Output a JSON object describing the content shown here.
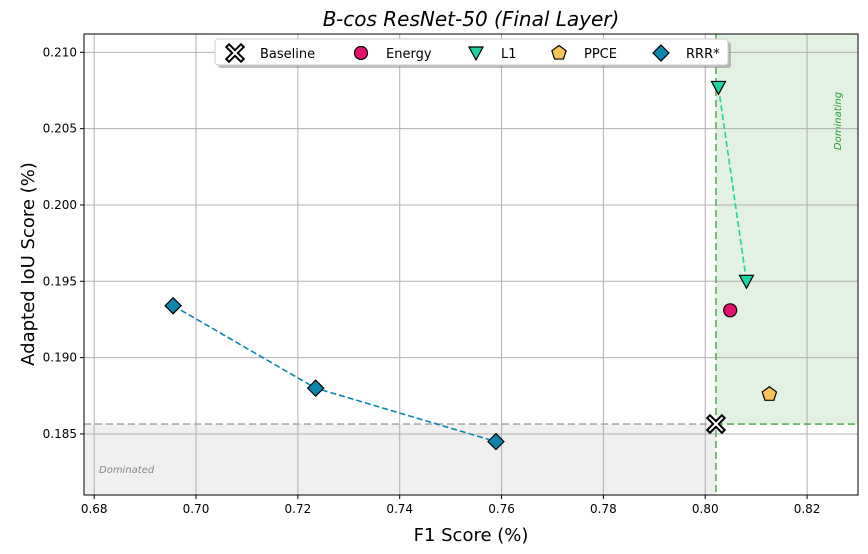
{
  "chart_data": {
    "type": "scatter",
    "title": "B-cos ResNet-50 (Final Layer)",
    "xlabel": "F1 Score (%)",
    "ylabel": "Adapted IoU Score (%)",
    "xlim": [
      0.678,
      0.83
    ],
    "ylim": [
      0.181,
      0.2112
    ],
    "xticks": [
      "0.68",
      "0.70",
      "0.72",
      "0.74",
      "0.76",
      "0.78",
      "0.80",
      "0.82"
    ],
    "yticks": [
      "0.185",
      "0.190",
      "0.195",
      "0.200",
      "0.205",
      "0.210"
    ],
    "grid": true,
    "legend_position": "top-center",
    "baseline": {
      "x": 0.8021,
      "y": 0.18565
    },
    "regions": {
      "dominating_label": "Dominating",
      "dominating_color": "#2e9e3a",
      "dominated_label": "Dominated",
      "dominated_color": "#888888"
    },
    "series": [
      {
        "name": "Baseline",
        "marker": "x-cross",
        "color": "#000000",
        "edge": "#000000",
        "connected": false,
        "points": [
          {
            "x": 0.8021,
            "y": 0.18565
          }
        ]
      },
      {
        "name": "Energy",
        "marker": "circle",
        "color": "#e8106e",
        "edge": "#000000",
        "connected": false,
        "points": [
          {
            "x": 0.8049,
            "y": 0.1931
          }
        ]
      },
      {
        "name": "L1",
        "marker": "triangle-down",
        "color": "#19d6a0",
        "edge": "#000000",
        "connected": true,
        "points": [
          {
            "x": 0.8026,
            "y": 0.2077
          },
          {
            "x": 0.8081,
            "y": 0.195
          }
        ]
      },
      {
        "name": "PPCE",
        "marker": "pentagon",
        "color": "#f8c457",
        "edge": "#000000",
        "connected": false,
        "points": [
          {
            "x": 0.8126,
            "y": 0.1876
          }
        ]
      },
      {
        "name": "RRR*",
        "marker": "diamond",
        "color": "#0c86ae",
        "edge": "#000000",
        "connected": true,
        "points": [
          {
            "x": 0.6955,
            "y": 0.1934
          },
          {
            "x": 0.7235,
            "y": 0.188
          },
          {
            "x": 0.7589,
            "y": 0.1845
          }
        ]
      }
    ]
  }
}
